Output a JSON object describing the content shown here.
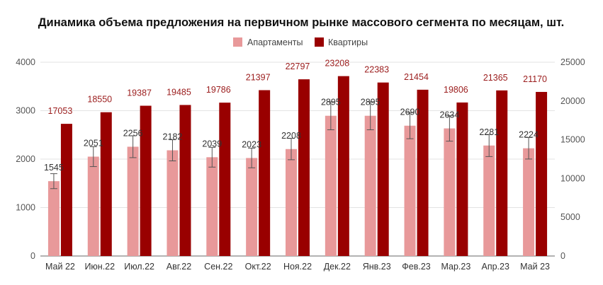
{
  "chart_data": {
    "type": "bar",
    "title": "Динамика объема предложения на первичном рынке массового сегмента по месяцам, шт.",
    "categories": [
      "Май 22",
      "Июн.22",
      "Июл.22",
      "Авг.22",
      "Сен.22",
      "Окт.22",
      "Ноя.22",
      "Дек.22",
      "Янв.23",
      "Фев.23",
      "Мар.23",
      "Апр.23",
      "Май 23"
    ],
    "series": [
      {
        "name": "Апартаменты",
        "axis": "left",
        "color": "#e8999a",
        "values": [
          1545,
          2051,
          2256,
          2182,
          2039,
          2023,
          2208,
          2895,
          2895,
          2690,
          2634,
          2281,
          2224
        ],
        "error_bars": true
      },
      {
        "name": "Квартиры",
        "axis": "right",
        "color": "#990000",
        "values": [
          17053,
          18550,
          19387,
          19485,
          19786,
          21397,
          22797,
          23208,
          22383,
          21454,
          19806,
          21365,
          21170
        ]
      }
    ],
    "ylim_left": [
      0,
      4000
    ],
    "yticks_left": [
      "0",
      "1000",
      "2000",
      "3000",
      "4000"
    ],
    "ylim_right": [
      0,
      25000
    ],
    "yticks_right": [
      "0",
      "5000",
      "10000",
      "15000",
      "20000",
      "25000"
    ],
    "legend_position": "top",
    "grid": true
  }
}
